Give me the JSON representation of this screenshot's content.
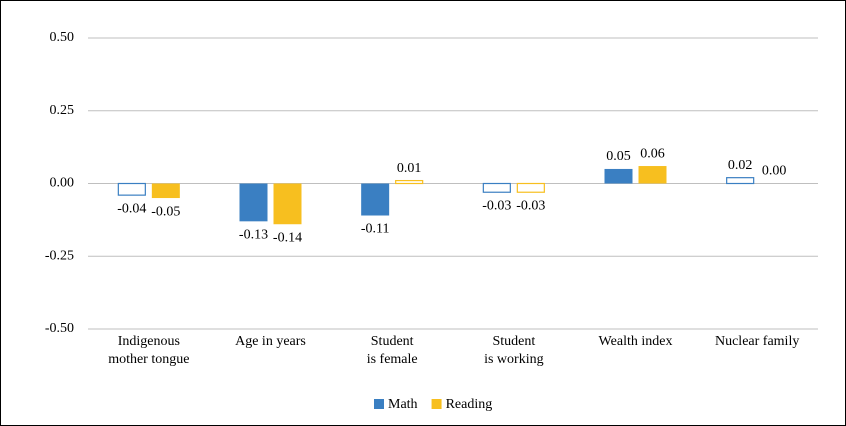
{
  "chart_data": {
    "type": "bar",
    "categories": [
      "Indigenous\nmother tongue",
      "Age in years",
      "Student\nis female",
      "Student\nis working",
      "Wealth index",
      "Nuclear family"
    ],
    "series": [
      {
        "name": "Math",
        "color": "#3a7fc2",
        "values": [
          -0.04,
          -0.13,
          -0.11,
          -0.03,
          0.05,
          0.02
        ],
        "value_labels": [
          "-0.04",
          "-0.13",
          "-0.11",
          "-0.03",
          "0.05",
          "0.02"
        ],
        "filled": [
          false,
          true,
          true,
          false,
          true,
          false
        ]
      },
      {
        "name": "Reading",
        "color": "#f7bf1f",
        "values": [
          -0.05,
          -0.14,
          0.01,
          -0.03,
          0.06,
          0.0
        ],
        "value_labels": [
          "-0.05",
          "-0.14",
          "0.01",
          "-0.03",
          "0.06",
          "0.00"
        ],
        "filled": [
          true,
          true,
          false,
          false,
          true,
          true
        ]
      }
    ],
    "ylim": [
      -0.5,
      0.5
    ],
    "yticks": [
      {
        "value": 0.5,
        "label": "0.50"
      },
      {
        "value": 0.25,
        "label": "0.25"
      },
      {
        "value": 0,
        "label": "0.00"
      },
      {
        "value": -0.25,
        "label": "-0.25"
      },
      {
        "value": -0.5,
        "label": "-0.50"
      }
    ],
    "grid": true,
    "legend": "bottom"
  }
}
